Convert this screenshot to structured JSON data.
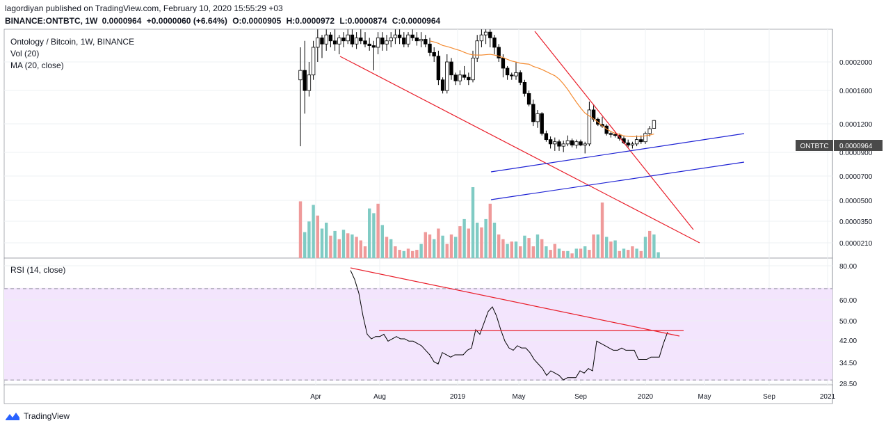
{
  "header": {
    "published_line": "lagordiyan published on TradingView.com, February 10, 2020 15:55:29 +03",
    "symbol_line": "BINANCE:ONTBTC, 1W",
    "open_label": "O:",
    "open": "0.0000905",
    "high_label": "H:",
    "high": "0.0000972",
    "low_label": "L:",
    "low": "0.0000874",
    "close_label": "C:",
    "close": "0.0000964",
    "last": "0.0000964",
    "change": "+0.0000060 (+6.64%)"
  },
  "legends": {
    "pair": "Ontology / Bitcoin, 1W, BINANCE",
    "volume": "Vol (20)",
    "ma": "MA (20, close)",
    "rsi": "RSI (14, close)"
  },
  "price_badge": {
    "symbol": "ONTBTC",
    "value": "0.0000964"
  },
  "brand": {
    "name": "TradingView"
  },
  "colors": {
    "up": "#ffffff",
    "down": "#000000",
    "wick": "#000000",
    "vol_up": "#80cbc4",
    "vol_down": "#ef9a9a",
    "ma": "#f48c32",
    "trend_red": "#e91e2a",
    "channel_blue": "#1e22d4",
    "rsi_fill": "#f3e5fd",
    "rsi_line": "#000000"
  },
  "chart_data": [
    {
      "type": "candlestick",
      "title": "Ontology / Bitcoin, 1W, BINANCE",
      "y_scale": "log",
      "y_ticks": [
        "0.0002000",
        "0.0001600",
        "0.0001200",
        "0.0000900",
        "0.0000700",
        "0.0000500",
        "0.0000350",
        "0.0000210"
      ],
      "x_ticks": [
        "Apr",
        "Aug",
        "2019",
        "May",
        "Sep",
        "2020",
        "May",
        "Sep",
        "2021"
      ],
      "last_candle": {
        "open": 9.05e-05,
        "high": 9.72e-05,
        "low": 8.74e-05,
        "close": 9.64e-05
      },
      "series": [
        {
          "name": "MA (20, close)"
        },
        {
          "name": "Vol (20)"
        }
      ]
    },
    {
      "type": "line",
      "title": "RSI (14, close)",
      "y_ticks": [
        "80.00",
        "60.00",
        "50.00",
        "42.00",
        "34.50",
        "28.50"
      ],
      "bands": [
        70,
        30
      ]
    }
  ]
}
